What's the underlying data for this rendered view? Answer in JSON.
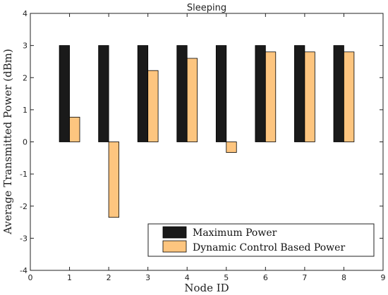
{
  "chart_data": {
    "type": "bar",
    "title": "Sleeping",
    "xlabel": "Node ID",
    "ylabel": "Average Transmitted Power (dBm)",
    "categories": [
      1,
      2,
      3,
      4,
      5,
      6,
      7,
      8
    ],
    "x_ticks": [
      "0",
      "1",
      "2",
      "3",
      "4",
      "5",
      "6",
      "7",
      "8",
      "9"
    ],
    "y_ticks": [
      "-4",
      "-3",
      "-2",
      "-1",
      "0",
      "1",
      "2",
      "3",
      "4"
    ],
    "xlim": [
      0,
      9
    ],
    "ylim": [
      -4,
      4
    ],
    "grid": false,
    "legend_position": "bottom-right",
    "series": [
      {
        "name": "Maximum Power",
        "color": "#1a1a1a",
        "values": [
          3,
          3,
          3,
          3,
          3,
          3,
          3,
          3
        ]
      },
      {
        "name": "Dynamic Control Based Power",
        "color": "#fdc57f",
        "values": [
          0.77,
          -2.35,
          2.22,
          2.6,
          -0.33,
          2.8,
          2.8,
          2.8
        ]
      }
    ]
  }
}
